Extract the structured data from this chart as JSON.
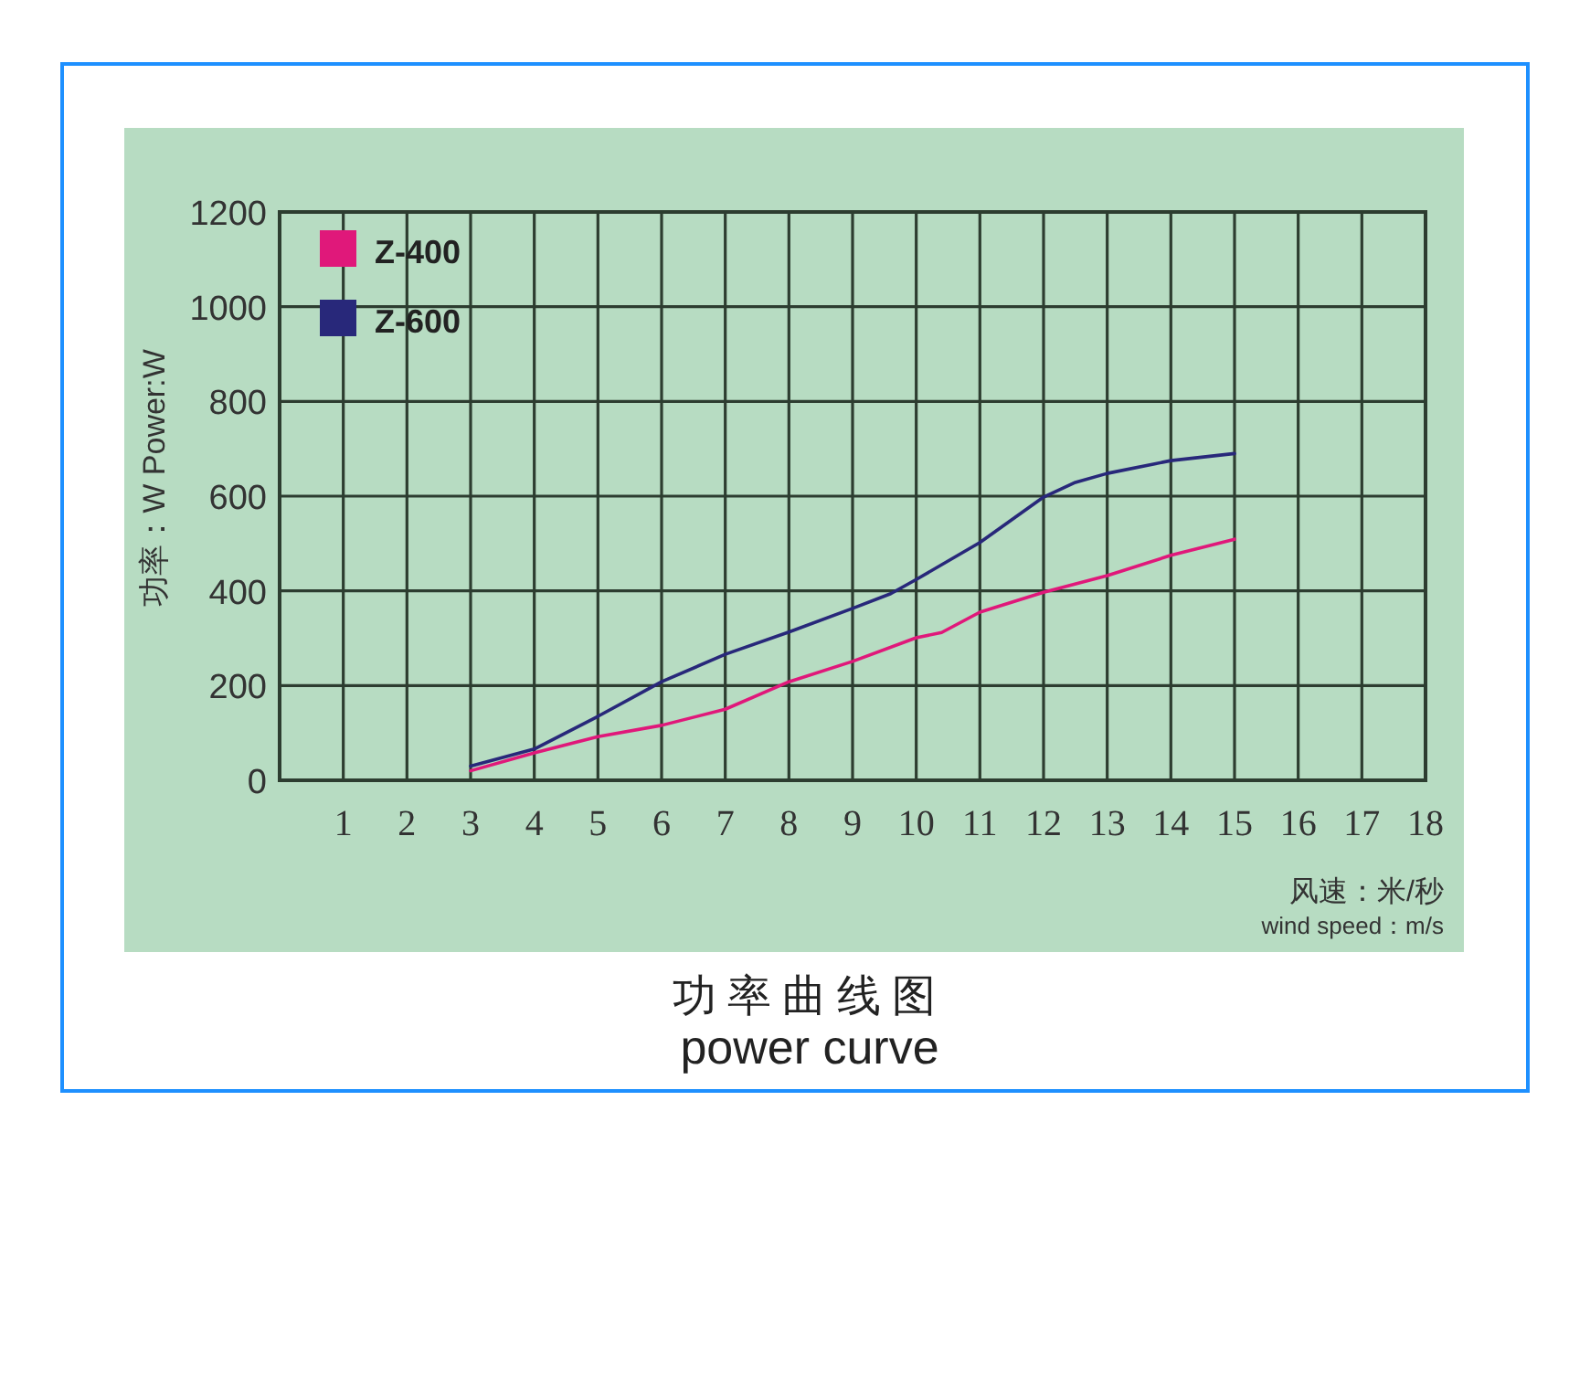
{
  "chart_data": {
    "type": "line",
    "title": "功率曲线图",
    "subtitle": "power curve",
    "xlabel": "风速：米/秒",
    "ylabel": "功率：W Power:W",
    "annotations": [
      "wind speed：m/s"
    ],
    "xlim": [
      0,
      18
    ],
    "xticks": [
      1,
      2,
      3,
      4,
      5,
      6,
      7,
      8,
      9,
      10,
      11,
      12,
      13,
      14,
      15,
      16,
      17,
      18
    ],
    "ylim": [
      0,
      1200
    ],
    "yticks": [
      0,
      200,
      400,
      600,
      800,
      1000,
      1200
    ],
    "grid": true,
    "legend": "top left",
    "marker": "none",
    "line_style": "solid",
    "series": [
      {
        "name": "Z-400",
        "color": "#e0187a",
        "x": [
          3,
          4,
          5,
          6,
          7,
          8,
          9,
          10,
          10.4,
          11,
          12,
          13,
          14,
          15
        ],
        "values": [
          20,
          58,
          92,
          116,
          150,
          208,
          251,
          301,
          312,
          355,
          397,
          432,
          475,
          509
        ]
      },
      {
        "name": "Z-600",
        "color": "#28287a",
        "x": [
          3,
          4,
          5,
          6,
          7,
          8,
          9,
          9.6,
          10,
          11,
          12,
          12.5,
          13,
          14,
          15
        ],
        "values": [
          30,
          66,
          135,
          208,
          266,
          313,
          363,
          394,
          424,
          502,
          598,
          629,
          648,
          675,
          690
        ]
      }
    ]
  }
}
